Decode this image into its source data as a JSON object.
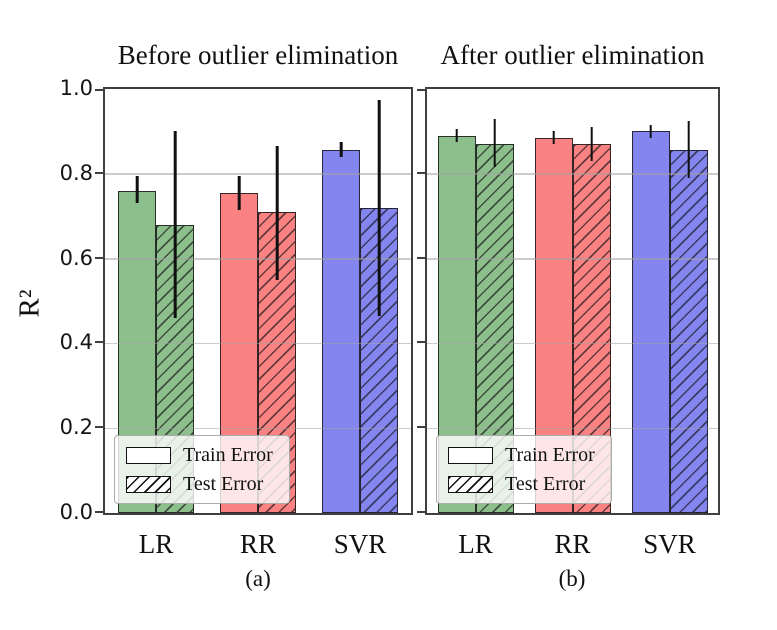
{
  "figure": {
    "ylabel": "R²",
    "yticks": [
      "0.0",
      "0.2",
      "0.4",
      "0.6",
      "0.8",
      "1.0"
    ],
    "ytick_values": [
      0.0,
      0.2,
      0.4,
      0.6,
      0.8,
      1.0
    ],
    "legend": [
      "Train Error",
      "Test Error"
    ],
    "bar_colors": [
      "#8cbf8c",
      "#fa8282",
      "#8585f0"
    ],
    "grid_color": "#c9c9c9",
    "error_color": "#101010",
    "spine_color": "#3f3f3f"
  },
  "chart_data": [
    {
      "type": "bar",
      "title": "Before outlier elimination",
      "caption": "(a)",
      "categories": [
        "LR",
        "RR",
        "SVR"
      ],
      "series": [
        {
          "name": "Train Error",
          "style": "solid",
          "values": [
            0.76,
            0.755,
            0.855
          ],
          "err_low": [
            0.73,
            0.715,
            0.84
          ],
          "err_high": [
            0.795,
            0.795,
            0.875
          ]
        },
        {
          "name": "Test Error",
          "style": "hatched",
          "values": [
            0.68,
            0.71,
            0.72
          ],
          "err_low": [
            0.46,
            0.55,
            0.465
          ],
          "err_high": [
            0.9,
            0.865,
            0.975
          ]
        }
      ],
      "xlabel": "",
      "ylabel": "R²",
      "ylim": [
        0,
        1.0
      ],
      "grid": true,
      "legend_position": "lower left"
    },
    {
      "type": "bar",
      "title": "After outlier elimination",
      "caption": "(b)",
      "categories": [
        "LR",
        "RR",
        "SVR"
      ],
      "series": [
        {
          "name": "Train Error",
          "style": "solid",
          "values": [
            0.89,
            0.885,
            0.9
          ],
          "err_low": [
            0.875,
            0.87,
            0.885
          ],
          "err_high": [
            0.905,
            0.9,
            0.915
          ]
        },
        {
          "name": "Test Error",
          "style": "hatched",
          "values": [
            0.87,
            0.87,
            0.855
          ],
          "err_low": [
            0.815,
            0.83,
            0.79
          ],
          "err_high": [
            0.93,
            0.91,
            0.925
          ]
        }
      ],
      "xlabel": "",
      "ylabel": "R²",
      "ylim": [
        0,
        1.0
      ],
      "grid": true,
      "legend_position": "lower left"
    }
  ]
}
